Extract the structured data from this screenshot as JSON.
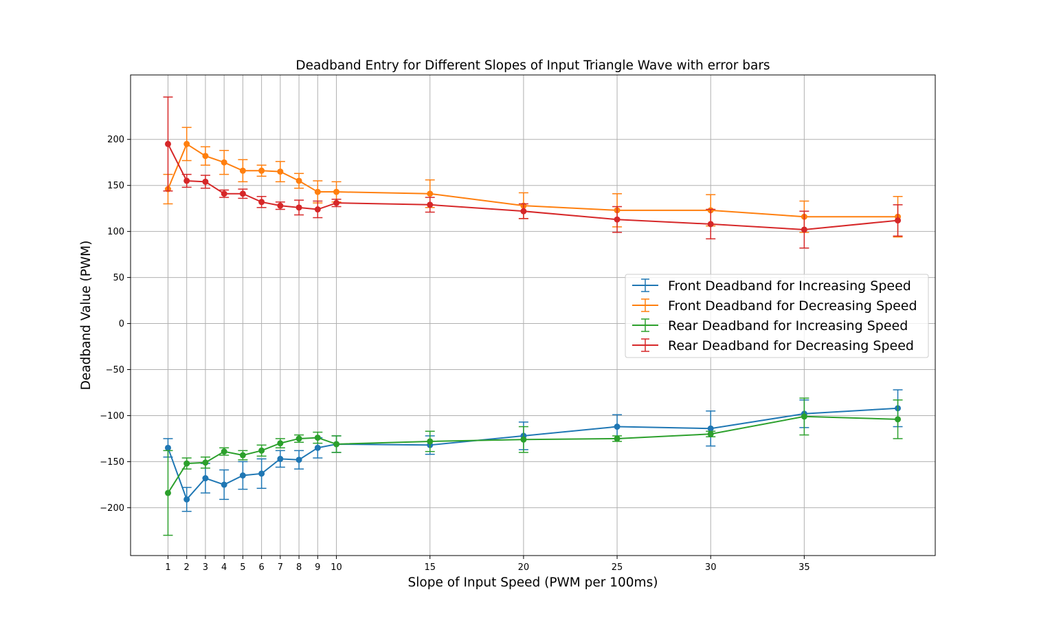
{
  "chart_data": {
    "type": "line",
    "title": "Deadband Entry for Different Slopes of Input Triangle Wave with error bars",
    "xlabel": "Slope of Input Speed (PWM per 100ms)",
    "ylabel": "Deadband Value (PWM)",
    "xlim": [
      -1,
      42
    ],
    "ylim": [
      -252,
      270
    ],
    "x_ticks": [
      1,
      2,
      3,
      4,
      5,
      6,
      7,
      8,
      9,
      10,
      15,
      20,
      25,
      30,
      35
    ],
    "x_tick_labels": [
      "1",
      "2",
      "3",
      "4",
      "5",
      "6",
      "7",
      "8",
      "9",
      "10",
      "15",
      "20",
      "25",
      "30",
      "35"
    ],
    "y_ticks": [
      -200,
      -150,
      -100,
      -50,
      0,
      50,
      100,
      150,
      200
    ],
    "y_tick_labels": [
      "−200",
      "−150",
      "−100",
      "−50",
      "0",
      "50",
      "100",
      "150",
      "200"
    ],
    "grid": true,
    "legend_position": "center-right",
    "x": [
      1,
      2,
      3,
      4,
      5,
      6,
      7,
      8,
      9,
      10,
      15,
      20,
      25,
      30,
      35,
      40
    ],
    "series": [
      {
        "name": "Front Deadband for Increasing Speed",
        "color": "#1f77b4",
        "values": [
          -135,
          -191,
          -168,
          -175,
          -165,
          -163,
          -147,
          -148,
          -135,
          -131,
          -132,
          -122,
          -112,
          -114,
          -98,
          -92
        ],
        "errors": [
          10,
          13,
          16,
          16,
          15,
          16,
          9,
          10,
          11,
          9,
          10,
          15,
          13,
          19,
          15,
          20
        ]
      },
      {
        "name": "Front Deadband for Decreasing Speed",
        "color": "#ff7f0e",
        "values": [
          146,
          195,
          182,
          175,
          166,
          166,
          165,
          155,
          143,
          143,
          141,
          128,
          123,
          123,
          116,
          116
        ],
        "errors": [
          16,
          18,
          10,
          13,
          12,
          6,
          11,
          8,
          12,
          11,
          15,
          14,
          18,
          17,
          17,
          22
        ]
      },
      {
        "name": "Rear Deadband for Increasing Speed",
        "color": "#2ca02c",
        "values": [
          -184,
          -152,
          -151,
          -139,
          -143,
          -138,
          -130,
          -125,
          -124,
          -131,
          -128,
          -126,
          -125,
          -120,
          -101,
          -104
        ],
        "errors": [
          46,
          6,
          6,
          4,
          5,
          6,
          5,
          4,
          6,
          9,
          11,
          14,
          3,
          3,
          20,
          21
        ]
      },
      {
        "name": "Rear Deadband for Decreasing Speed",
        "color": "#d62728",
        "values": [
          195,
          155,
          154,
          141,
          141,
          132,
          128,
          126,
          124,
          131,
          129,
          122,
          113,
          108,
          102,
          112
        ],
        "errors": [
          51,
          7,
          7,
          4,
          5,
          6,
          4,
          8,
          9,
          4,
          8,
          8,
          14,
          16,
          20,
          17
        ]
      }
    ]
  }
}
